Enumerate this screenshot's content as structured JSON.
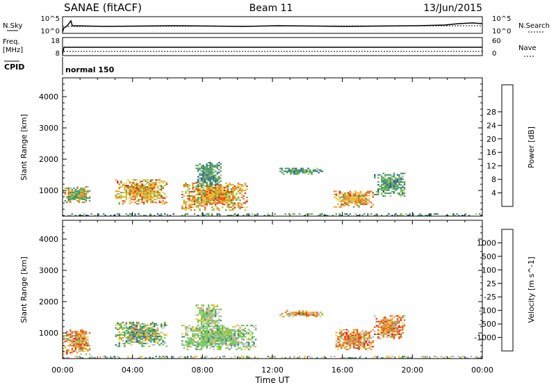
{
  "header": {
    "station": "SANAE (fitACF)",
    "beam": "Beam 11",
    "date": "13/Jun/2015"
  },
  "labels": {
    "nsky": "N.Sky",
    "freq": "Freq.",
    "mhz": "[MHz]",
    "cpid": "CPID",
    "nsearch": "N.Search",
    "nave": "Nave",
    "cpid_value": "normal 150",
    "slant_range": "Slant Range [km]",
    "xlabel": "Time UT"
  },
  "noise_axis": {
    "top": "10^5",
    "bottom": "10^0"
  },
  "freq_axis": {
    "top": "18",
    "bottom": "8"
  },
  "nave_axis": {
    "top": "60",
    "bottom": "0"
  },
  "colorbars": {
    "power": {
      "label": "Power [dB]",
      "ticks": [
        "4",
        "8",
        "12",
        "16",
        "20",
        "24",
        "28"
      ],
      "colors": [
        "#1414e6",
        "#2850a0",
        "#3c8c78",
        "#50a050",
        "#96c83c",
        "#dcc832",
        "#f0a01e",
        "#f06414",
        "#e61e0a"
      ]
    },
    "velocity": {
      "label": "Velocity [m s^-1]",
      "ticks": [
        "1000",
        "500",
        "100",
        "25",
        "-25",
        "-100",
        "-500",
        "-1000"
      ],
      "colors": [
        "#1428c8",
        "#2864a0",
        "#3c8c64",
        "#64c846",
        "#b4b4b4",
        "#f0c828",
        "#f08c1e",
        "#f05014",
        "#e61414"
      ]
    }
  },
  "chart_data": [
    {
      "type": "heatmap",
      "panel": "power",
      "xlabel": "Time UT",
      "ylabel": "Slant Range [km]",
      "x_ticks": [
        "00:00",
        "04:00",
        "08:00",
        "12:00",
        "16:00",
        "20:00",
        "00:00"
      ],
      "xlim_hours": [
        0,
        24
      ],
      "y_ticks": [
        1000,
        2000,
        3000,
        4000
      ],
      "ylim": [
        180,
        4600
      ],
      "regions": [
        {
          "t0": 0.0,
          "t1": 1.6,
          "r0": 600,
          "r1": 1100,
          "level": "mixed-mid"
        },
        {
          "t0": 3.0,
          "t1": 5.9,
          "r0": 550,
          "r1": 1350,
          "level": "high"
        },
        {
          "t0": 6.8,
          "t1": 10.5,
          "r0": 350,
          "r1": 1250,
          "level": "high"
        },
        {
          "t0": 7.6,
          "t1": 9.0,
          "r0": 1100,
          "r1": 1900,
          "level": "low"
        },
        {
          "t0": 12.4,
          "t1": 14.8,
          "r0": 1500,
          "r1": 1700,
          "level": "low"
        },
        {
          "t0": 15.5,
          "t1": 17.8,
          "r0": 450,
          "r1": 950,
          "level": "high"
        },
        {
          "t0": 17.8,
          "t1": 19.6,
          "r0": 800,
          "r1": 1550,
          "level": "low"
        },
        {
          "t0": 0.0,
          "t1": 24.0,
          "r0": 180,
          "r1": 260,
          "level": "low"
        }
      ]
    },
    {
      "type": "heatmap",
      "panel": "velocity",
      "xlabel": "Time UT",
      "ylabel": "Slant Range [km]",
      "x_ticks": [
        "00:00",
        "04:00",
        "08:00",
        "12:00",
        "16:00",
        "20:00",
        "00:00"
      ],
      "xlim_hours": [
        0,
        24
      ],
      "y_ticks": [
        1000,
        2000,
        3000,
        4000
      ],
      "ylim": [
        180,
        4600
      ],
      "regions": [
        {
          "t0": 0.0,
          "t1": 1.6,
          "r0": 300,
          "r1": 1100,
          "level": "away"
        },
        {
          "t0": 3.0,
          "t1": 5.9,
          "r0": 550,
          "r1": 1350,
          "level": "toward"
        },
        {
          "t0": 6.8,
          "t1": 11.0,
          "r0": 450,
          "r1": 1250,
          "level": "toward-slow"
        },
        {
          "t0": 7.6,
          "t1": 9.0,
          "r0": 1100,
          "r1": 1900,
          "level": "toward-slow"
        },
        {
          "t0": 12.4,
          "t1": 14.8,
          "r0": 1500,
          "r1": 1700,
          "level": "away"
        },
        {
          "t0": 15.5,
          "t1": 17.8,
          "r0": 450,
          "r1": 1100,
          "level": "away"
        },
        {
          "t0": 17.8,
          "t1": 19.6,
          "r0": 800,
          "r1": 1550,
          "level": "away"
        },
        {
          "t0": 0.0,
          "t1": 24.0,
          "r0": 180,
          "r1": 260,
          "level": "ground"
        }
      ]
    }
  ]
}
